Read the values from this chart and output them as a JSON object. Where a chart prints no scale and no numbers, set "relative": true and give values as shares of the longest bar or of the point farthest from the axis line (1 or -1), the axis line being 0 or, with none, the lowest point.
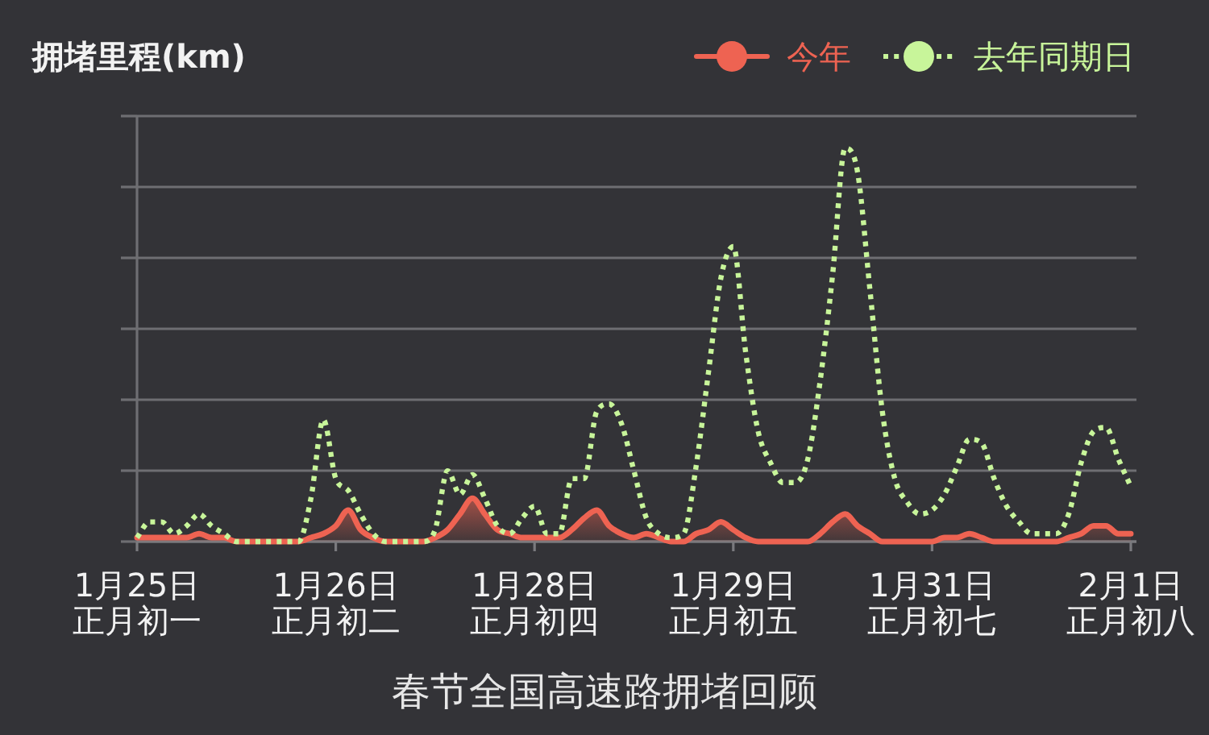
{
  "chart_data": {
    "type": "line",
    "title": "春节全国高速路拥堵回顾",
    "ylabel": "拥堵里程(km)",
    "relative": true,
    "grid": "y",
    "legend": "top right",
    "categories": [
      "1月25日正月初一",
      null,
      null,
      null,
      null,
      null,
      null,
      null,
      null,
      null,
      null,
      null,
      null,
      null,
      null,
      null,
      "1月26日正月初二",
      null,
      null,
      null,
      null,
      null,
      null,
      null,
      null,
      null,
      null,
      null,
      null,
      null,
      null,
      null,
      "1月28日正月初四",
      null,
      null,
      null,
      null,
      null,
      null,
      null,
      null,
      null,
      null,
      null,
      null,
      null,
      null,
      null,
      "1月29日正月初五",
      null,
      null,
      null,
      null,
      null,
      null,
      null,
      null,
      null,
      null,
      null,
      null,
      null,
      null,
      null,
      "1月31日正月初七",
      null,
      null,
      null,
      null,
      null,
      null,
      null,
      null,
      null,
      null,
      null,
      null,
      null,
      null,
      null,
      "2月1日正月初八"
    ],
    "series": [
      {
        "name": "今年",
        "type": "area",
        "color": "#ee6352",
        "values": [
          0.01,
          0.01,
          0.01,
          0.01,
          0.01,
          0.02,
          0.01,
          0.01,
          0,
          0,
          0,
          0,
          0,
          0,
          0.01,
          0.02,
          0.04,
          0.08,
          0.03,
          0.01,
          0,
          0,
          0,
          0,
          0.01,
          0.03,
          0.07,
          0.11,
          0.07,
          0.03,
          0.02,
          0.01,
          0.01,
          0.01,
          0.01,
          0.03,
          0.06,
          0.08,
          0.04,
          0.02,
          0.01,
          0.02,
          0.01,
          0,
          0,
          0.02,
          0.03,
          0.05,
          0.03,
          0.01,
          0,
          0,
          0,
          0,
          0,
          0.02,
          0.05,
          0.07,
          0.04,
          0.02,
          0,
          0,
          0,
          0,
          0,
          0.01,
          0.01,
          0.02,
          0.01,
          0,
          0,
          0,
          0,
          0,
          0,
          0.01,
          0.02,
          0.04,
          0.04,
          0.02,
          0.02
        ]
      },
      {
        "name": "去年同期日",
        "color": "#c8f59a",
        "line_style": "dotted",
        "values": [
          0.01,
          0.05,
          0.05,
          0.02,
          0.04,
          0.07,
          0.04,
          0.02,
          0,
          0,
          0,
          0,
          0,
          0,
          0.11,
          0.31,
          0.16,
          0.13,
          0.07,
          0.02,
          0,
          0,
          0,
          0,
          0.03,
          0.18,
          0.12,
          0.17,
          0.11,
          0.04,
          0.02,
          0.06,
          0.09,
          0.02,
          0.02,
          0.16,
          0.16,
          0.33,
          0.35,
          0.3,
          0.18,
          0.06,
          0.02,
          0.01,
          0.02,
          0.19,
          0.43,
          0.67,
          0.75,
          0.48,
          0.28,
          0.2,
          0.15,
          0.15,
          0.21,
          0.41,
          0.68,
          1,
          0.94,
          0.64,
          0.33,
          0.16,
          0.1,
          0.07,
          0.08,
          0.12,
          0.19,
          0.26,
          0.25,
          0.16,
          0.09,
          0.05,
          0.02,
          0.02,
          0.02,
          0.07,
          0.2,
          0.28,
          0.29,
          0.21,
          0.14
        ]
      }
    ]
  }
}
